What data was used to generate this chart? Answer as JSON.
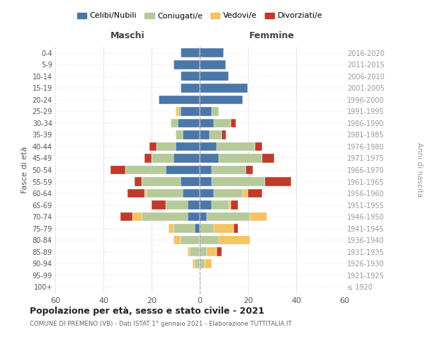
{
  "age_groups": [
    "100+",
    "95-99",
    "90-94",
    "85-89",
    "80-84",
    "75-79",
    "70-74",
    "65-69",
    "60-64",
    "55-59",
    "50-54",
    "45-49",
    "40-44",
    "35-39",
    "30-34",
    "25-29",
    "20-24",
    "15-19",
    "10-14",
    "5-9",
    "0-4"
  ],
  "birth_years": [
    "≤ 1920",
    "1921-1925",
    "1926-1930",
    "1931-1935",
    "1936-1940",
    "1941-1945",
    "1946-1950",
    "1951-1955",
    "1956-1960",
    "1961-1965",
    "1966-1970",
    "1971-1975",
    "1976-1980",
    "1981-1985",
    "1986-1990",
    "1991-1995",
    "1996-2000",
    "2001-2005",
    "2006-2010",
    "2011-2015",
    "2016-2020"
  ],
  "male_celibi": [
    0,
    0,
    0,
    0,
    0,
    2,
    5,
    5,
    7,
    8,
    14,
    11,
    10,
    7,
    9,
    8,
    17,
    8,
    8,
    11,
    8
  ],
  "male_coniugati": [
    0,
    0,
    2,
    4,
    8,
    9,
    19,
    9,
    15,
    16,
    17,
    9,
    8,
    3,
    3,
    1,
    0,
    0,
    0,
    0,
    0
  ],
  "male_vedovi": [
    0,
    0,
    1,
    1,
    3,
    2,
    4,
    0,
    1,
    0,
    0,
    0,
    0,
    0,
    0,
    1,
    0,
    0,
    0,
    0,
    0
  ],
  "male_divorziati": [
    0,
    0,
    0,
    0,
    0,
    0,
    5,
    6,
    7,
    3,
    6,
    3,
    3,
    0,
    0,
    0,
    0,
    0,
    0,
    0,
    0
  ],
  "female_nubili": [
    0,
    0,
    0,
    0,
    0,
    0,
    3,
    5,
    6,
    5,
    5,
    8,
    7,
    4,
    6,
    5,
    18,
    20,
    12,
    11,
    10
  ],
  "female_coniugate": [
    0,
    0,
    2,
    3,
    8,
    6,
    18,
    7,
    12,
    22,
    14,
    18,
    16,
    5,
    7,
    3,
    0,
    0,
    0,
    0,
    0
  ],
  "female_vedove": [
    0,
    0,
    3,
    4,
    13,
    8,
    7,
    1,
    2,
    0,
    0,
    0,
    0,
    0,
    0,
    0,
    0,
    0,
    0,
    0,
    0
  ],
  "female_divorziate": [
    0,
    0,
    0,
    2,
    0,
    2,
    0,
    3,
    6,
    11,
    3,
    5,
    3,
    2,
    2,
    0,
    0,
    0,
    0,
    0,
    0
  ],
  "color_celibi": "#4b77a8",
  "color_coniugati": "#b5c99a",
  "color_vedovi": "#f5c265",
  "color_divorziati": "#c0392b",
  "xlim": 60,
  "title": "Popolazione per età, sesso e stato civile - 2021",
  "subtitle": "COMUNE DI PREMENO (VB) - Dati ISTAT 1° gennaio 2021 - Elaborazione TUTTITALIA.IT",
  "label_maschi": "Maschi",
  "label_femmine": "Femmine",
  "ylabel_left": "Fasce di età",
  "ylabel_right": "Anni di nascita",
  "legend_labels": [
    "Celibi/Nubili",
    "Coniugati/e",
    "Vedovi/e",
    "Divorziati/e"
  ]
}
